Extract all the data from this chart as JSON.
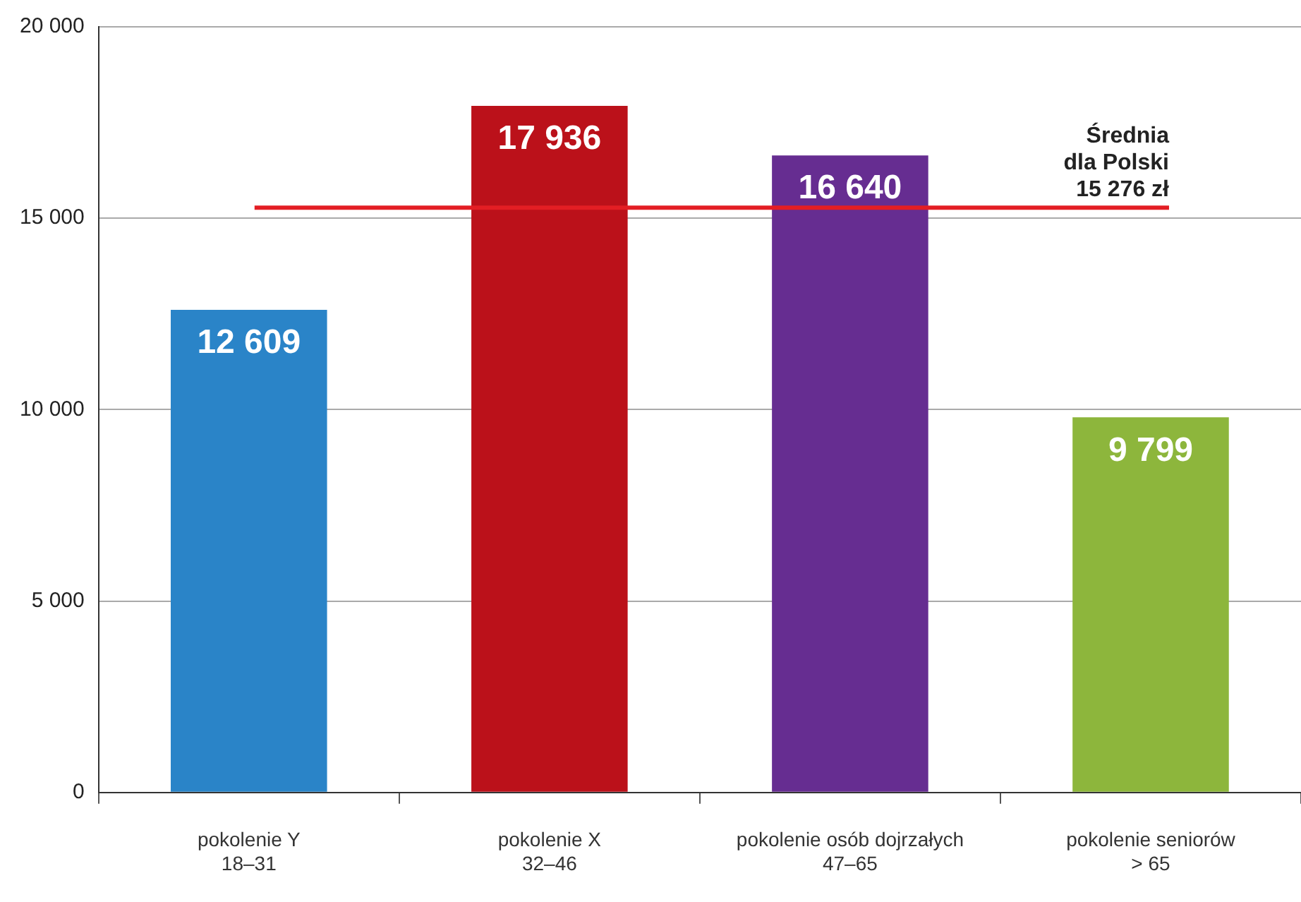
{
  "chart_data": {
    "type": "bar",
    "categories": [
      "pokolenie Y\n18–31",
      "pokolenie X\n32–46",
      "pokolenie osób dojrzałych\n47–65",
      "pokolenie seniorów\n> 65"
    ],
    "values": [
      12609,
      17936,
      16640,
      9799
    ],
    "colors": [
      "#2a84c8",
      "#bb111a",
      "#662d91",
      "#8db63c"
    ],
    "value_labels": [
      "12 609",
      "17 936",
      "16 640",
      "9 799"
    ],
    "ylim": [
      0,
      20000
    ],
    "yticks": [
      {
        "value": 0,
        "label": "0"
      },
      {
        "value": 5000,
        "label": "5 000"
      },
      {
        "value": 10000,
        "label": "10 000"
      },
      {
        "value": 15000,
        "label": "15 000"
      },
      {
        "value": 20000,
        "label": "20 000"
      }
    ],
    "grid": "y",
    "ref_lines": [
      {
        "axis": "y",
        "value": 15276,
        "label": "Średnia\ndla Polski\n15 276 zł",
        "color": "#e31e24"
      }
    ]
  }
}
